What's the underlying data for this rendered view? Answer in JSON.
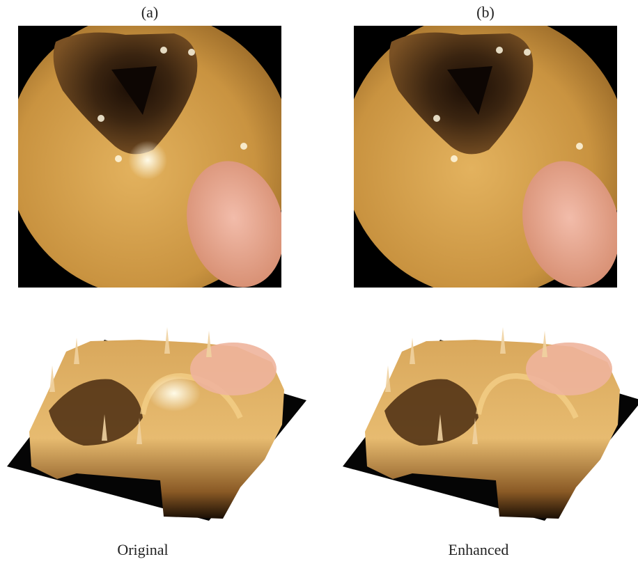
{
  "panels": [
    {
      "label": "(a)",
      "caption": "Original"
    },
    {
      "label": "(b)",
      "caption": "Enhanced"
    }
  ]
}
